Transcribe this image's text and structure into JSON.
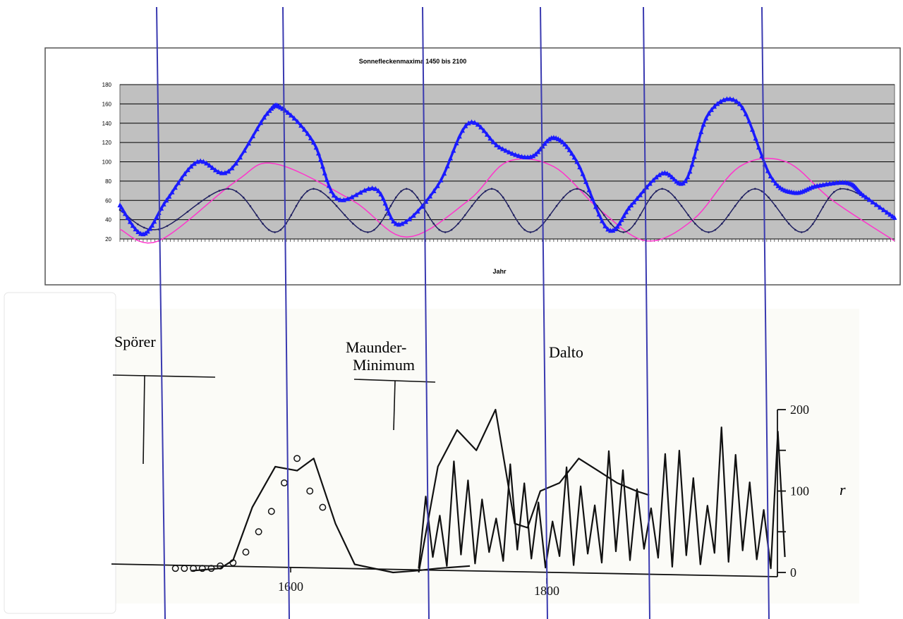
{
  "colors": {
    "plot_bg": "#c0c0c0",
    "grid": "#000000",
    "blue_series": "#1a1aff",
    "navy_series": "#202060",
    "magenta_series": "#ff33cc",
    "overlay_line": "#3a3ab0",
    "ink": "#111111",
    "paper": "#fbfbf7"
  },
  "chart_data": [
    {
      "type": "line",
      "title": "Sonnefleckenmaxima 1450 bis 2100",
      "xlabel": "Jahr",
      "ylabel": "",
      "ylim": [
        20,
        180
      ],
      "yticks": [
        20,
        40,
        60,
        80,
        100,
        120,
        140,
        160,
        180
      ],
      "xlim": [
        0,
        1
      ],
      "grid": true,
      "legend": "none",
      "series": [
        {
          "color": "#1a1aff",
          "marker": "triangle",
          "x": [
            0,
            0.03,
            0.06,
            0.1,
            0.14,
            0.19,
            0.21,
            0.25,
            0.28,
            0.33,
            0.36,
            0.41,
            0.45,
            0.49,
            0.53,
            0.56,
            0.59,
            0.63,
            0.66,
            0.7,
            0.73,
            0.76,
            0.8,
            0.84,
            0.87,
            0.9,
            0.94,
            0.96,
            1.0
          ],
          "y": [
            55,
            25,
            60,
            100,
            90,
            150,
            155,
            120,
            62,
            72,
            35,
            75,
            140,
            115,
            105,
            125,
            100,
            30,
            55,
            88,
            80,
            150,
            160,
            85,
            68,
            75,
            78,
            65,
            42
          ]
        },
        {
          "color": "#202060",
          "marker": "dot",
          "x": [
            0,
            0.05,
            0.14,
            0.2,
            0.25,
            0.32,
            0.37,
            0.42,
            0.48,
            0.53,
            0.59,
            0.65,
            0.7,
            0.76,
            0.82,
            0.88,
            0.93,
            1.0
          ],
          "y": [
            50,
            30,
            72,
            27,
            72,
            27,
            72,
            27,
            72,
            27,
            72,
            27,
            72,
            27,
            72,
            27,
            72,
            42
          ]
        },
        {
          "color": "#ff33cc",
          "marker": "none",
          "x": [
            0,
            0.05,
            0.15,
            0.2,
            0.3,
            0.37,
            0.45,
            0.5,
            0.56,
            0.62,
            0.68,
            0.74,
            0.8,
            0.86,
            0.92,
            1.0
          ],
          "y": [
            30,
            18,
            80,
            98,
            60,
            22,
            60,
            100,
            95,
            50,
            18,
            40,
            95,
            100,
            60,
            18
          ]
        }
      ]
    },
    {
      "type": "line",
      "title": "",
      "xlabel": "",
      "ylabel": "r",
      "ylim": [
        0,
        200
      ],
      "yticks": [
        0,
        100,
        200
      ],
      "xticks": [
        1600,
        1800
      ],
      "grid": false,
      "legend": "none",
      "annotations": [
        "Spörer",
        "Maunder-",
        "Minimum",
        "Dalto"
      ],
      "series": [
        {
          "marker": "none",
          "x": [
            1522,
            1545,
            1555,
            1570,
            1588,
            1605,
            1618,
            1635,
            1650,
            1680,
            1697,
            1715,
            1740
          ],
          "y": [
            2,
            5,
            15,
            80,
            130,
            125,
            140,
            60,
            10,
            0,
            2,
            5,
            8
          ]
        },
        {
          "marker": "circle",
          "x": [
            1510,
            1517,
            1524,
            1531,
            1538,
            1545,
            1555,
            1565,
            1575,
            1585,
            1595,
            1605,
            1615,
            1625
          ],
          "y": [
            5,
            5,
            5,
            5,
            5,
            8,
            12,
            25,
            50,
            75,
            110,
            140,
            100,
            80
          ]
        },
        {
          "marker": "none",
          "x": [
            1700,
            1715,
            1730,
            1745,
            1760,
            1775,
            1785,
            1795,
            1810,
            1825,
            1840,
            1855,
            1870,
            1880
          ],
          "y": [
            0,
            130,
            175,
            150,
            200,
            60,
            55,
            100,
            110,
            140,
            125,
            110,
            100,
            95
          ]
        }
      ]
    }
  ]
}
